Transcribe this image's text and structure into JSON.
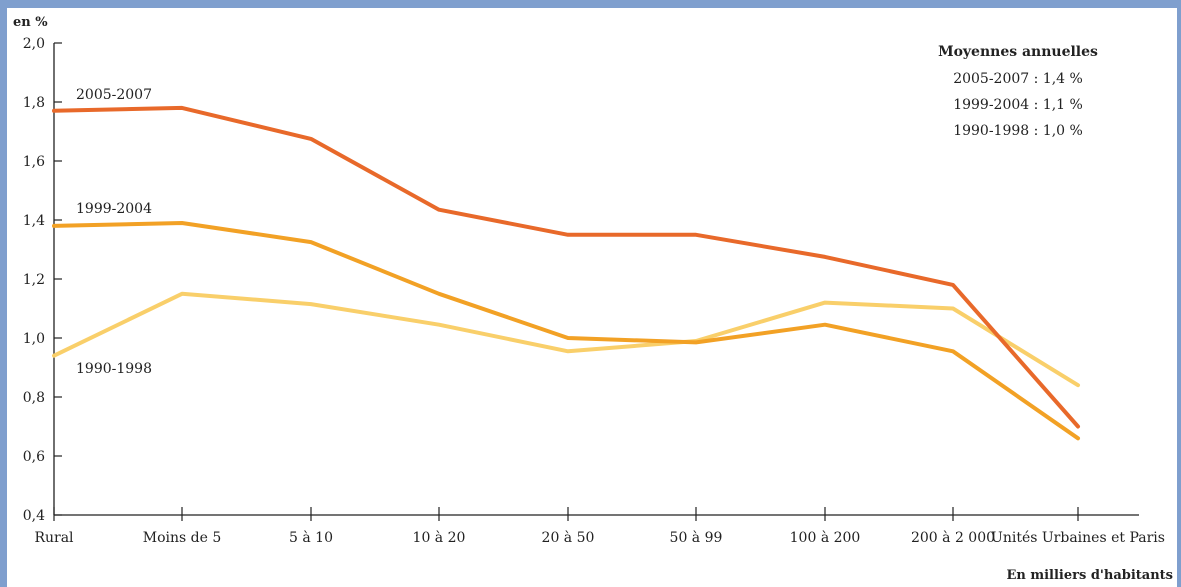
{
  "chart_data": {
    "type": "line",
    "title": "",
    "ylabel": "en %",
    "xlabel": "En milliers d'habitants",
    "ylim": [
      0.4,
      2.0
    ],
    "yticks": [
      "2,0",
      "1,8",
      "1,6",
      "1,4",
      "1,2",
      "1,0",
      "0,8",
      "0,6",
      "0,4"
    ],
    "categories": [
      "Rural",
      "Moins de 5",
      "5 à 10",
      "10 à 20",
      "20 à 50",
      "50 à 99",
      "100 à 200",
      "200 à 2 000",
      "Unités Urbaines et Paris"
    ],
    "series": [
      {
        "name": "2005-2007",
        "color": "#e8692a",
        "values": [
          1.77,
          1.78,
          1.675,
          1.435,
          1.35,
          1.35,
          1.275,
          1.18,
          0.7
        ]
      },
      {
        "name": "1999-2004",
        "color": "#f2a125",
        "values": [
          1.38,
          1.39,
          1.325,
          1.15,
          1.0,
          0.985,
          1.045,
          0.955,
          0.66
        ]
      },
      {
        "name": "1990-1998",
        "color": "#f9cf6a",
        "values": [
          0.94,
          1.15,
          1.115,
          1.045,
          0.955,
          0.99,
          1.12,
          1.1,
          0.84
        ]
      }
    ],
    "legend": {
      "title": "Moyennes annuelles",
      "lines": [
        "2005-2007 : 1,4 %",
        "1999-2004 : 1,1 %",
        "1990-1998 : 1,0 %"
      ],
      "placement": "top-right"
    },
    "grid": false
  },
  "colors": {
    "frame": "#7f9fce",
    "axis": "#222222"
  }
}
